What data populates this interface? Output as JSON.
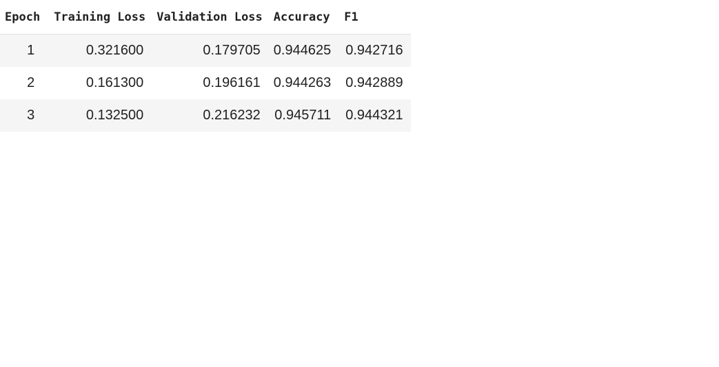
{
  "table": {
    "headers": [
      "Epoch",
      "Training Loss",
      "Validation Loss",
      "Accuracy",
      "F1"
    ],
    "rows": [
      [
        "1",
        "0.321600",
        "0.179705",
        "0.944625",
        "0.942716"
      ],
      [
        "2",
        "0.161300",
        "0.196161",
        "0.944263",
        "0.942889"
      ],
      [
        "3",
        "0.132500",
        "0.216232",
        "0.945711",
        "0.944321"
      ]
    ]
  }
}
